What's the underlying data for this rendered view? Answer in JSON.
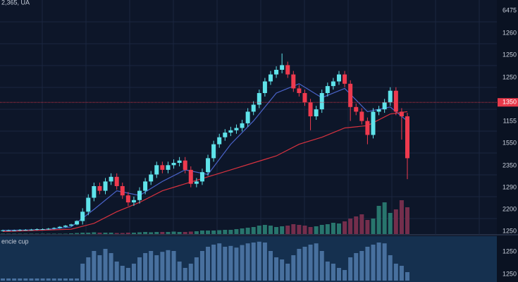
{
  "chart_data": {
    "type": "candlestick",
    "header": "2,365, UA",
    "panel_label": "encie cup",
    "price_labels": [
      "6475",
      "1260",
      "1250",
      "1250",
      "1155",
      "1550",
      "2350",
      "1290",
      "2200",
      "1250"
    ],
    "lower_labels": [
      "1250",
      "1250"
    ],
    "price_line": {
      "value": 56,
      "label": "1350",
      "color": "#e8394a"
    },
    "ylim": [
      0,
      100
    ],
    "up_color": "#5fe3ea",
    "down_color": "#ee3a4e",
    "grid": true,
    "open": [
      0.8,
      1,
      1,
      1,
      1.2,
      1.2,
      1.3,
      1.5,
      1.5,
      1.7,
      2,
      2.5,
      3,
      3.5,
      5,
      9,
      15,
      20,
      18,
      22,
      24,
      20,
      16,
      13,
      14,
      18,
      22,
      25,
      29,
      27,
      29,
      30,
      31,
      27,
      21,
      22,
      26,
      32,
      38,
      41,
      43,
      44,
      45,
      47,
      52,
      55,
      60,
      65,
      68,
      70,
      72,
      68,
      62,
      60,
      56,
      50,
      53,
      60,
      63,
      65,
      68,
      64,
      54,
      52,
      48,
      42,
      52,
      53,
      56,
      61,
      52,
      50
    ],
    "high": [
      1.3,
      1.3,
      1.3,
      1.5,
      1.5,
      1.6,
      1.8,
      1.8,
      2,
      2.3,
      2.8,
      3.3,
      3.8,
      5.3,
      10.5,
      16.5,
      21.5,
      21.5,
      23.5,
      25.5,
      25.5,
      21.5,
      17.5,
      15.5,
      19.5,
      23.5,
      26.5,
      30.5,
      30.5,
      30.5,
      31.5,
      32.5,
      32.5,
      28.5,
      23.5,
      27.5,
      33.5,
      39.5,
      42.5,
      44.5,
      45.5,
      46.5,
      48.5,
      53.5,
      56.5,
      61.5,
      66.5,
      69.5,
      71.5,
      77,
      73.5,
      69.5,
      63.5,
      61.5,
      57.5,
      54.5,
      61.5,
      64.5,
      66.5,
      69.5,
      69.5,
      65.5,
      55.5,
      53.5,
      49.5,
      53.5,
      54.5,
      57.5,
      62.5,
      62.5,
      53.5,
      51.5
    ],
    "low": [
      0.5,
      0.7,
      0.7,
      0.7,
      0.9,
      0.9,
      1,
      1.2,
      1.2,
      1.4,
      1.7,
      2.2,
      2.7,
      3.2,
      3.5,
      7.5,
      13.5,
      16.5,
      16.5,
      20.5,
      18.5,
      14.5,
      11.5,
      11.5,
      12.5,
      16.5,
      20.5,
      23.5,
      25.5,
      25.5,
      27.5,
      28.5,
      25.5,
      19.5,
      19.5,
      20.5,
      24.5,
      30.5,
      36.5,
      39.5,
      41.5,
      42.5,
      43.5,
      45.5,
      50.5,
      53.5,
      58.5,
      63.5,
      66.5,
      68.5,
      66.5,
      60.5,
      58.5,
      54.5,
      44,
      48.5,
      51.5,
      58.5,
      61.5,
      63.5,
      62.5,
      48,
      50.5,
      46.5,
      38,
      40.5,
      50.5,
      51.5,
      54.5,
      50.5,
      40,
      23
    ],
    "close": [
      1,
      1,
      1,
      1.2,
      1.2,
      1.3,
      1.5,
      1.5,
      1.7,
      2,
      2.5,
      3,
      3.5,
      5,
      9,
      15,
      20,
      18,
      22,
      24,
      20,
      16,
      13,
      14,
      18,
      22,
      25,
      29,
      27,
      29,
      30,
      31,
      27,
      21,
      22,
      26,
      32,
      38,
      41,
      43,
      44,
      45,
      47,
      52,
      55,
      60,
      65,
      68,
      70,
      72,
      68,
      62,
      60,
      56,
      50,
      53,
      60,
      63,
      65,
      68,
      64,
      54,
      52,
      48,
      42,
      52,
      53,
      56,
      61,
      52,
      50,
      32
    ],
    "moving_averages": [
      {
        "color": "#4a63c9",
        "x": [
          0,
          4,
          8,
          12,
          16,
          20,
          24,
          28,
          32,
          36,
          40,
          44,
          48,
          52,
          56,
          60,
          64,
          68,
          71
        ],
        "values": [
          1,
          1.1,
          1.4,
          2.5,
          10,
          18,
          16,
          22,
          27,
          25,
          38,
          48,
          60,
          64,
          58,
          62,
          52,
          54,
          48
        ]
      },
      {
        "color": "#d8323f",
        "x": [
          0,
          12,
          16,
          20,
          24,
          28,
          32,
          36,
          40,
          44,
          48,
          52,
          56,
          60,
          64,
          68,
          71
        ],
        "values": [
          0.5,
          1.5,
          4,
          9,
          13,
          18,
          21,
          24,
          27,
          30,
          33,
          38,
          41,
          45,
          46,
          51,
          52
        ]
      }
    ],
    "volume_ylim": [
      0,
      50
    ],
    "volume": [
      0.5,
      0.5,
      0.5,
      0.5,
      0.5,
      0.5,
      0.5,
      0.5,
      0.5,
      0.5,
      0.5,
      0.5,
      1,
      1.5,
      2,
      2,
      2.5,
      2,
      2,
      2,
      1.5,
      1.5,
      2,
      2,
      2.5,
      3,
      2.5,
      3,
      3,
      3,
      3.5,
      3,
      3,
      3.5,
      4,
      5,
      5,
      5,
      5.5,
      6,
      6,
      7,
      8,
      9,
      10,
      12,
      13,
      12,
      10,
      11,
      12,
      14,
      13,
      12,
      10,
      11,
      13,
      14,
      16,
      15,
      18,
      22,
      25,
      28,
      20,
      22,
      40,
      45,
      30,
      35,
      48,
      38
    ],
    "oscillator_ylim": [
      0,
      100
    ],
    "oscillator": [
      5,
      5,
      5,
      5,
      5,
      5,
      5,
      5,
      5,
      5,
      5,
      5,
      5,
      5,
      40,
      55,
      70,
      60,
      75,
      65,
      45,
      35,
      30,
      40,
      55,
      65,
      70,
      60,
      68,
      72,
      70,
      45,
      30,
      40,
      55,
      70,
      80,
      85,
      88,
      80,
      82,
      78,
      84,
      88,
      90,
      92,
      90,
      70,
      55,
      50,
      40,
      60,
      75,
      80,
      85,
      88,
      70,
      45,
      40,
      30,
      25,
      55,
      65,
      70,
      80,
      85,
      90,
      88,
      60,
      40,
      35,
      20
    ]
  }
}
